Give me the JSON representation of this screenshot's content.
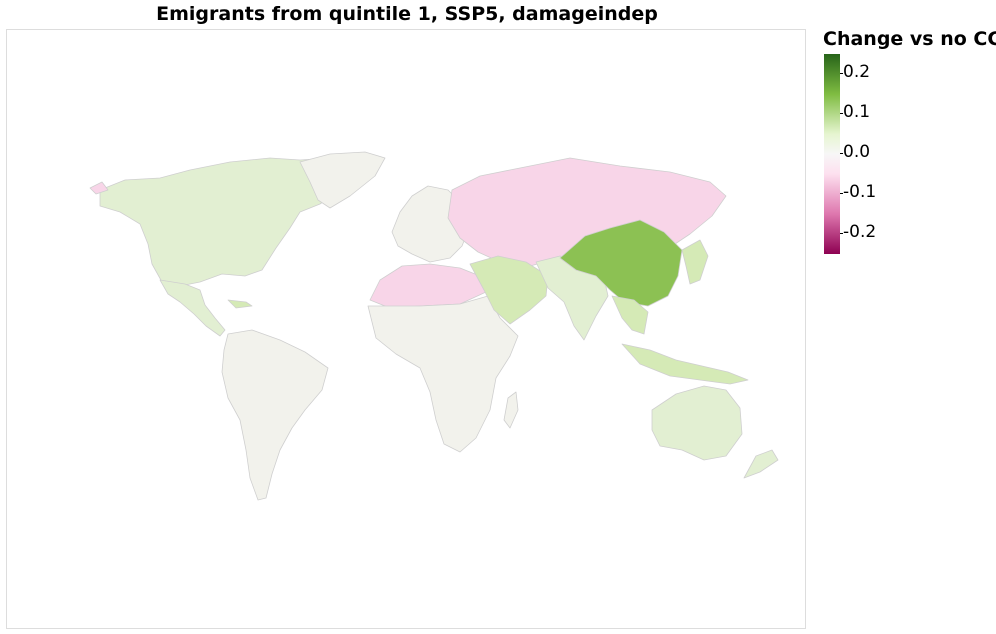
{
  "title": "Emigrants from quintile 1, SSP5, damageindep",
  "legend": {
    "title": "Change vs no CC",
    "ticks": [
      "0.2",
      "0.1",
      "0.0",
      "-0.1",
      "-0.2"
    ]
  },
  "colors": {
    "neutral": "#f2f2ec",
    "slight_green": "#e2efd2",
    "light_green": "#d5eab6",
    "strong_green": "#8cc153",
    "light_pink": "#f8d5e8",
    "border": "#cfcfcf"
  }
}
